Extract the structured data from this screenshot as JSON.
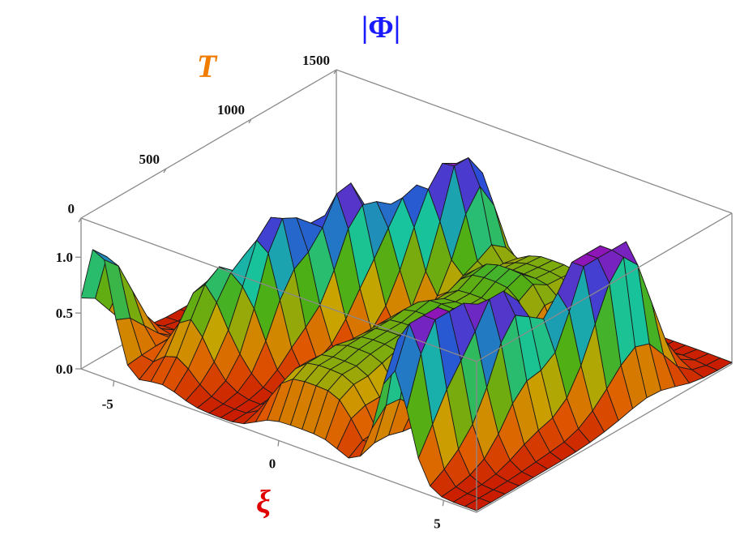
{
  "chart_data": {
    "type": "surface3d",
    "title": "|Φ|",
    "xlabel": "ξ",
    "ylabel": "T",
    "zlabel": "",
    "x_ticks": [
      "-5",
      "0",
      "5"
    ],
    "y_ticks": [
      "0",
      "500",
      "1000",
      "1500"
    ],
    "z_ticks": [
      "0.0",
      "0.5",
      "1.0"
    ],
    "xlim": [
      -6,
      6
    ],
    "ylim": [
      0,
      1500
    ],
    "zlim": [
      0,
      1.35
    ],
    "grid": false,
    "colors": {
      "title": "#1a1aff",
      "xlabel": "#e00000",
      "ylabel": "#f07c00",
      "box": "#8a8a8a",
      "mesh": "#1a1a1a"
    },
    "colormap": [
      "#c81800",
      "#e05a00",
      "#c9a400",
      "#4caf16",
      "#16c4a0",
      "#2a4dd8",
      "#8e16b8"
    ],
    "peaks": [
      {
        "x": -5.5,
        "t": 0,
        "z": 1.15,
        "wx": 0.45,
        "wt": 160
      },
      {
        "x": -3.6,
        "t": 300,
        "z": 0.8,
        "wx": 0.55,
        "wt": 150
      },
      {
        "x": -2.6,
        "t": 500,
        "z": 1.2,
        "wx": 0.5,
        "wt": 130
      },
      {
        "x": -2.1,
        "t": 800,
        "z": 1.25,
        "wx": 0.5,
        "wt": 130
      },
      {
        "x": -1.4,
        "t": 1050,
        "z": 1.0,
        "wx": 0.5,
        "wt": 130
      },
      {
        "x": -0.7,
        "t": 1250,
        "z": 1.38,
        "wx": 0.45,
        "wt": 120
      },
      {
        "x": 3.4,
        "t": 100,
        "z": 1.1,
        "wx": 0.45,
        "wt": 140
      },
      {
        "x": 3.8,
        "t": 250,
        "z": 1.0,
        "wx": 0.45,
        "wt": 140
      },
      {
        "x": 4.3,
        "t": 500,
        "z": 1.25,
        "wx": 0.5,
        "wt": 130
      },
      {
        "x": 4.7,
        "t": 850,
        "z": 1.2,
        "wx": 0.5,
        "wt": 140
      },
      {
        "x": 5.0,
        "t": 1050,
        "z": 1.3,
        "wx": 0.45,
        "wt": 130
      }
    ],
    "humps": [
      {
        "x": 0.6,
        "t": 200,
        "z": 0.55,
        "wx": 1.4,
        "wt": 190
      },
      {
        "x": 0.9,
        "t": 550,
        "z": 0.6,
        "wx": 1.4,
        "wt": 200
      },
      {
        "x": 1.2,
        "t": 900,
        "z": 0.6,
        "wx": 1.4,
        "wt": 200
      },
      {
        "x": 1.5,
        "t": 1250,
        "z": 0.58,
        "wx": 1.5,
        "wt": 220
      }
    ]
  }
}
